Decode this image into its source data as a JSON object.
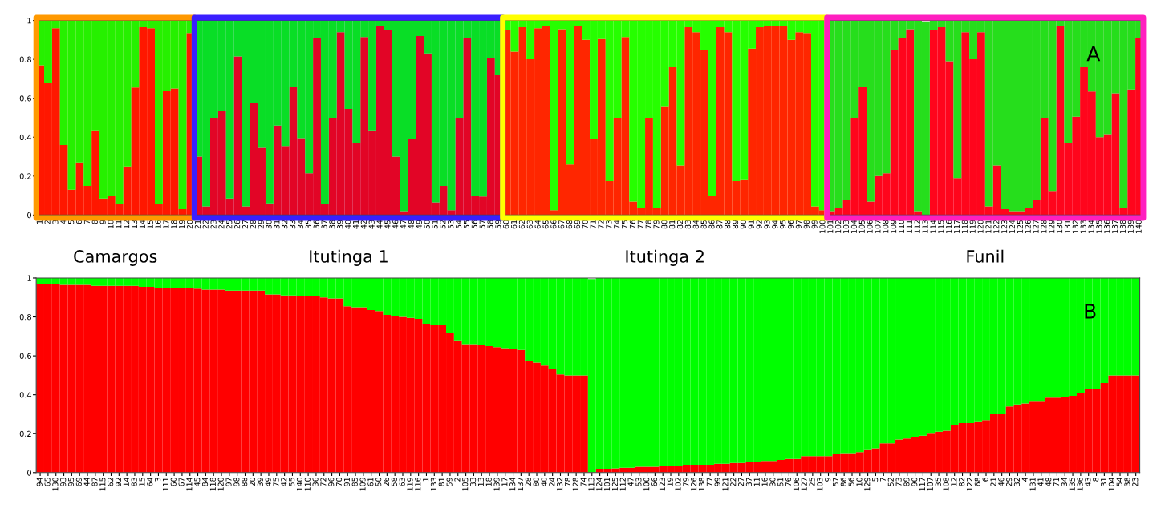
{
  "chart_data": [
    {
      "type": "bar",
      "stacked": true,
      "categories": [
        "1",
        "2",
        "3",
        "4",
        "5",
        "6",
        "7",
        "8",
        "9",
        "10",
        "11",
        "12",
        "13",
        "14",
        "15",
        "16",
        "17",
        "18",
        "19",
        "20",
        "21",
        "22",
        "23",
        "24",
        "25",
        "26",
        "27",
        "28",
        "29",
        "30",
        "31",
        "32",
        "33",
        "34",
        "35",
        "36",
        "37",
        "38",
        "39",
        "40",
        "41",
        "42",
        "43",
        "44",
        "45",
        "46",
        "47",
        "48",
        "49",
        "50",
        "51",
        "52",
        "53",
        "54",
        "55",
        "56",
        "57",
        "58",
        "59",
        "60",
        "61",
        "62",
        "63",
        "64",
        "65",
        "66",
        "67",
        "68",
        "69",
        "70",
        "71",
        "72",
        "73",
        "74",
        "75",
        "76",
        "77",
        "78",
        "79",
        "80",
        "81",
        "82",
        "83",
        "84",
        "85",
        "86",
        "87",
        "88",
        "89",
        "90",
        "91",
        "92",
        "93",
        "94",
        "95",
        "96",
        "97",
        "98",
        "99",
        "100",
        "101",
        "102",
        "103",
        "104",
        "105",
        "106",
        "107",
        "108",
        "109",
        "110",
        "111",
        "112",
        "113",
        "114",
        "115",
        "116",
        "117",
        "118",
        "119",
        "120",
        "121",
        "122",
        "123",
        "124",
        "125",
        "126",
        "127",
        "128",
        "129",
        "130",
        "131",
        "132",
        "133",
        "134",
        "135",
        "136",
        "137",
        "138",
        "139",
        "140"
      ],
      "series": [
        {
          "color": "#ff0000",
          "values": [
            0.77,
            0.68,
            0.96,
            0.36,
            0.13,
            0.27,
            0.15,
            0.435,
            0.085,
            0.1,
            0.055,
            0.25,
            0.655,
            0.965,
            0.96,
            0.055,
            0.64,
            0.65,
            0.03,
            0.935,
            0.3,
            0.045,
            0.5,
            0.535,
            0.085,
            0.815,
            0.045,
            0.575,
            0.345,
            0.06,
            0.46,
            0.355,
            0.66,
            0.395,
            0.215,
            0.91,
            0.055,
            0.5,
            0.94,
            0.545,
            0.37,
            0.915,
            0.435,
            0.97,
            0.95,
            0.3,
            0.02,
            0.39,
            0.92,
            0.83,
            0.065,
            0.15,
            0.025,
            0.5,
            0.91,
            0.1,
            0.095,
            0.805,
            0.72,
            0.95,
            0.84,
            0.965,
            0.8,
            0.96,
            0.97,
            0.025,
            0.955,
            0.26,
            0.97,
            0.9,
            0.39,
            0.905,
            0.175,
            0.5,
            0.915,
            0.07,
            0.035,
            0.5,
            0.035,
            0.56,
            0.76,
            0.255,
            0.965,
            0.94,
            0.85,
            0.1,
            0.965,
            0.94,
            0.175,
            0.18,
            0.855,
            0.965,
            0.97,
            0.97,
            0.97,
            0.9,
            0.94,
            0.935,
            0.045,
            0.025,
            0.02,
            0.035,
            0.08,
            0.5,
            0.66,
            0.07,
            0.2,
            0.215,
            0.85,
            0.91,
            0.955,
            0.02,
            null,
            0.95,
            0.965,
            0.79,
            0.19,
            0.94,
            0.8,
            0.94,
            0.045,
            0.255,
            0.03,
            0.02,
            0.02,
            0.035,
            0.08,
            0.5,
            0.12,
            0.97,
            0.37,
            0.505,
            0.76,
            0.635,
            0.4,
            0.415,
            0.625,
            0.035,
            0.645,
            0.91
          ]
        },
        {
          "color": "#00ff00",
          "values": [
            0.23,
            0.32,
            0.04,
            0.64,
            0.87,
            0.73,
            0.85,
            0.565,
            0.915,
            0.9,
            0.945,
            0.75,
            0.345,
            0.035,
            0.04,
            0.945,
            0.36,
            0.35,
            0.97,
            0.065,
            0.7,
            0.955,
            0.5,
            0.465,
            0.915,
            0.185,
            0.955,
            0.425,
            0.655,
            0.94,
            0.54,
            0.645,
            0.34,
            0.605,
            0.785,
            0.09,
            0.945,
            0.5,
            0.06,
            0.455,
            0.63,
            0.085,
            0.565,
            0.03,
            0.05,
            0.7,
            0.98,
            0.61,
            0.08,
            0.17,
            0.935,
            0.85,
            0.975,
            0.5,
            0.09,
            0.9,
            0.905,
            0.195,
            0.28,
            0.05,
            0.16,
            0.035,
            0.2,
            0.04,
            0.03,
            0.975,
            0.045,
            0.74,
            0.03,
            0.1,
            0.61,
            0.095,
            0.825,
            0.5,
            0.085,
            0.93,
            0.965,
            0.5,
            0.965,
            0.44,
            0.24,
            0.745,
            0.035,
            0.06,
            0.15,
            0.9,
            0.035,
            0.06,
            0.825,
            0.82,
            0.145,
            0.035,
            0.03,
            0.03,
            0.03,
            0.1,
            0.06,
            0.065,
            0.955,
            0.975,
            0.98,
            0.965,
            0.92,
            0.5,
            0.34,
            0.93,
            0.8,
            0.785,
            0.15,
            0.09,
            0.045,
            0.98,
            0.995,
            0.05,
            0.035,
            0.21,
            0.81,
            0.06,
            0.2,
            0.06,
            0.955,
            0.745,
            0.97,
            0.98,
            0.98,
            0.965,
            0.92,
            0.5,
            0.88,
            0.03,
            0.63,
            0.495,
            0.24,
            0.365,
            0.6,
            0.585,
            0.375,
            0.965,
            0.355,
            0.09
          ]
        }
      ],
      "ylim": [
        0,
        1
      ],
      "yticks": [
        0,
        0.2,
        0.4,
        0.6,
        0.8,
        1
      ],
      "bands": [
        {
          "axis": "x",
          "from": "1",
          "to": "20",
          "label": "Camargos",
          "color": "#ff9900"
        },
        {
          "axis": "x",
          "from": "21",
          "to": "59",
          "label": "Itutinga 1",
          "color": "#3a1fff"
        },
        {
          "axis": "x",
          "from": "60",
          "to": "100",
          "label": "Itutinga 2",
          "color": "#ffff00"
        },
        {
          "axis": "x",
          "from": "101",
          "to": "140",
          "label": "Funil",
          "color": "#ff1fbf"
        }
      ],
      "annotations": [
        "A"
      ]
    },
    {
      "type": "bar",
      "stacked": true,
      "categories": [
        "94",
        "65",
        "130",
        "93",
        "95",
        "69",
        "44",
        "87",
        "115",
        "62",
        "92",
        "14",
        "83",
        "15",
        "64",
        "3",
        "111",
        "60",
        "67",
        "114",
        "45",
        "84",
        "118",
        "120",
        "97",
        "98",
        "88",
        "20",
        "39",
        "49",
        "75",
        "42",
        "55",
        "140",
        "110",
        "36",
        "72",
        "96",
        "70",
        "91",
        "85",
        "109",
        "61",
        "50",
        "26",
        "58",
        "63",
        "119",
        "116",
        "1",
        "133",
        "81",
        "59",
        "2",
        "105",
        "33",
        "13",
        "18",
        "139",
        "17",
        "134",
        "137",
        "28",
        "80",
        "40",
        "24",
        "132",
        "78",
        "128",
        "74",
        "113",
        "124",
        "101",
        "125",
        "112",
        "47",
        "53",
        "100",
        "66",
        "123",
        "19",
        "102",
        "79",
        "126",
        "138",
        "77",
        "99",
        "121",
        "22",
        "27",
        "37",
        "11",
        "16",
        "30",
        "51",
        "76",
        "106",
        "127",
        "25",
        "103",
        "9",
        "57",
        "86",
        "56",
        "10",
        "129",
        "5",
        "7",
        "52",
        "73",
        "89",
        "90",
        "117",
        "107",
        "35",
        "108",
        "12",
        "82",
        "122",
        "68",
        "6",
        "21",
        "46",
        "29",
        "32",
        "4",
        "131",
        "41",
        "48",
        "71",
        "34",
        "135",
        "136",
        "43",
        "8",
        "31",
        "104",
        "54",
        "38",
        "23"
      ],
      "series": [
        {
          "color": "#ff0000",
          "values": [
            0.97,
            0.97,
            0.97,
            0.965,
            0.965,
            0.965,
            0.965,
            0.96,
            0.96,
            0.96,
            0.96,
            0.96,
            0.96,
            0.955,
            0.955,
            0.95,
            0.95,
            0.95,
            0.95,
            0.95,
            0.945,
            0.94,
            0.94,
            0.94,
            0.935,
            0.935,
            0.935,
            0.935,
            0.935,
            0.915,
            0.915,
            0.91,
            0.91,
            0.905,
            0.905,
            0.905,
            0.9,
            0.895,
            0.895,
            0.855,
            0.85,
            0.85,
            0.835,
            0.83,
            0.81,
            0.805,
            0.8,
            0.795,
            0.79,
            0.765,
            0.76,
            0.76,
            0.72,
            0.68,
            0.66,
            0.66,
            0.655,
            0.65,
            0.645,
            0.64,
            0.635,
            0.63,
            0.575,
            0.565,
            0.55,
            0.535,
            0.505,
            0.5,
            0.5,
            0.5,
            null,
            0.02,
            0.02,
            0.022,
            0.025,
            0.025,
            0.03,
            0.03,
            0.03,
            0.035,
            0.035,
            0.035,
            0.04,
            0.04,
            0.04,
            0.04,
            0.045,
            0.045,
            0.05,
            0.05,
            0.055,
            0.055,
            0.06,
            0.06,
            0.065,
            0.07,
            0.07,
            0.085,
            0.085,
            0.085,
            0.085,
            0.095,
            0.1,
            0.1,
            0.105,
            0.12,
            0.125,
            0.15,
            0.15,
            0.17,
            0.175,
            0.18,
            0.19,
            0.2,
            0.21,
            0.215,
            0.245,
            0.255,
            0.255,
            0.26,
            0.27,
            0.3,
            0.3,
            0.34,
            0.35,
            0.355,
            0.365,
            0.365,
            0.385,
            0.385,
            0.39,
            0.395,
            0.41,
            0.43,
            0.43,
            0.46,
            0.5,
            0.5,
            0.5,
            0.5
          ]
        },
        {
          "color": "#00ff00",
          "values": [
            0.03,
            0.03,
            0.03,
            0.035,
            0.035,
            0.035,
            0.035,
            0.04,
            0.04,
            0.04,
            0.04,
            0.04,
            0.04,
            0.045,
            0.045,
            0.05,
            0.05,
            0.05,
            0.05,
            0.05,
            0.055,
            0.06,
            0.06,
            0.06,
            0.065,
            0.065,
            0.065,
            0.065,
            0.065,
            0.085,
            0.085,
            0.09,
            0.09,
            0.095,
            0.095,
            0.095,
            0.1,
            0.105,
            0.105,
            0.145,
            0.15,
            0.15,
            0.165,
            0.17,
            0.19,
            0.195,
            0.2,
            0.205,
            0.21,
            0.235,
            0.24,
            0.24,
            0.28,
            0.32,
            0.34,
            0.34,
            0.345,
            0.35,
            0.355,
            0.36,
            0.365,
            0.37,
            0.425,
            0.435,
            0.45,
            0.465,
            0.495,
            0.5,
            0.5,
            0.5,
            0.995,
            0.98,
            0.98,
            0.978,
            0.975,
            0.975,
            0.97,
            0.97,
            0.97,
            0.965,
            0.965,
            0.965,
            0.96,
            0.96,
            0.96,
            0.96,
            0.955,
            0.955,
            0.95,
            0.95,
            0.945,
            0.945,
            0.94,
            0.94,
            0.935,
            0.93,
            0.93,
            0.915,
            0.915,
            0.915,
            0.915,
            0.905,
            0.9,
            0.9,
            0.895,
            0.88,
            0.875,
            0.85,
            0.85,
            0.83,
            0.825,
            0.82,
            0.81,
            0.8,
            0.79,
            0.785,
            0.755,
            0.745,
            0.745,
            0.74,
            0.73,
            0.7,
            0.7,
            0.66,
            0.65,
            0.645,
            0.635,
            0.635,
            0.615,
            0.615,
            0.61,
            0.605,
            0.59,
            0.57,
            0.57,
            0.54,
            0.5,
            0.5,
            0.5,
            0.5
          ]
        }
      ],
      "ylim": [
        0,
        1
      ],
      "yticks": [
        0,
        0.2,
        0.4,
        0.6,
        0.8,
        1
      ],
      "annotations": [
        "B"
      ]
    }
  ]
}
